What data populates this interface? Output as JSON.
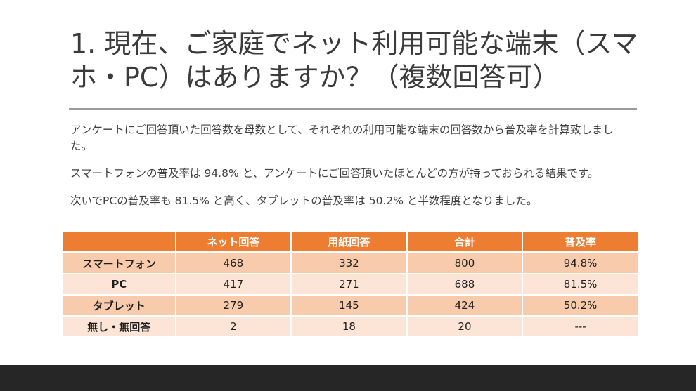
{
  "slide": {
    "title": "1. 現在、ご家庭でネット利用可能な端末（スマホ・PC）はありますか？（複数回答可）",
    "paragraphs": [
      "アンケートにご回答頂いた回答数を母数として、それぞれの利用可能な端末の回答数から普及率を計算致しました。",
      "スマートフォンの普及率は 94.8% と、アンケートにご回答頂いたほとんどの方が持っておられる結果です。",
      "次いでPCの普及率も 81.5% と高く、タブレットの普及率は 50.2% と半数程度となりました。"
    ]
  },
  "table": {
    "headers": [
      "",
      "ネット回答",
      "用紙回答",
      "合計",
      "普及率"
    ],
    "rows": [
      [
        "スマートフォン",
        "468",
        "332",
        "800",
        "94.8%"
      ],
      [
        "PC",
        "417",
        "271",
        "688",
        "81.5%"
      ],
      [
        "タブレット",
        "279",
        "145",
        "424",
        "50.2%"
      ],
      [
        "無し・無回答",
        "2",
        "18",
        "20",
        "---"
      ]
    ]
  },
  "colors": {
    "header_bg": "#ed7d31",
    "row_odd_bg": "#f8cbad",
    "row_even_bg": "#fce4d6",
    "footer_bg": "#262626",
    "title_rule": "#9a9a9a"
  }
}
